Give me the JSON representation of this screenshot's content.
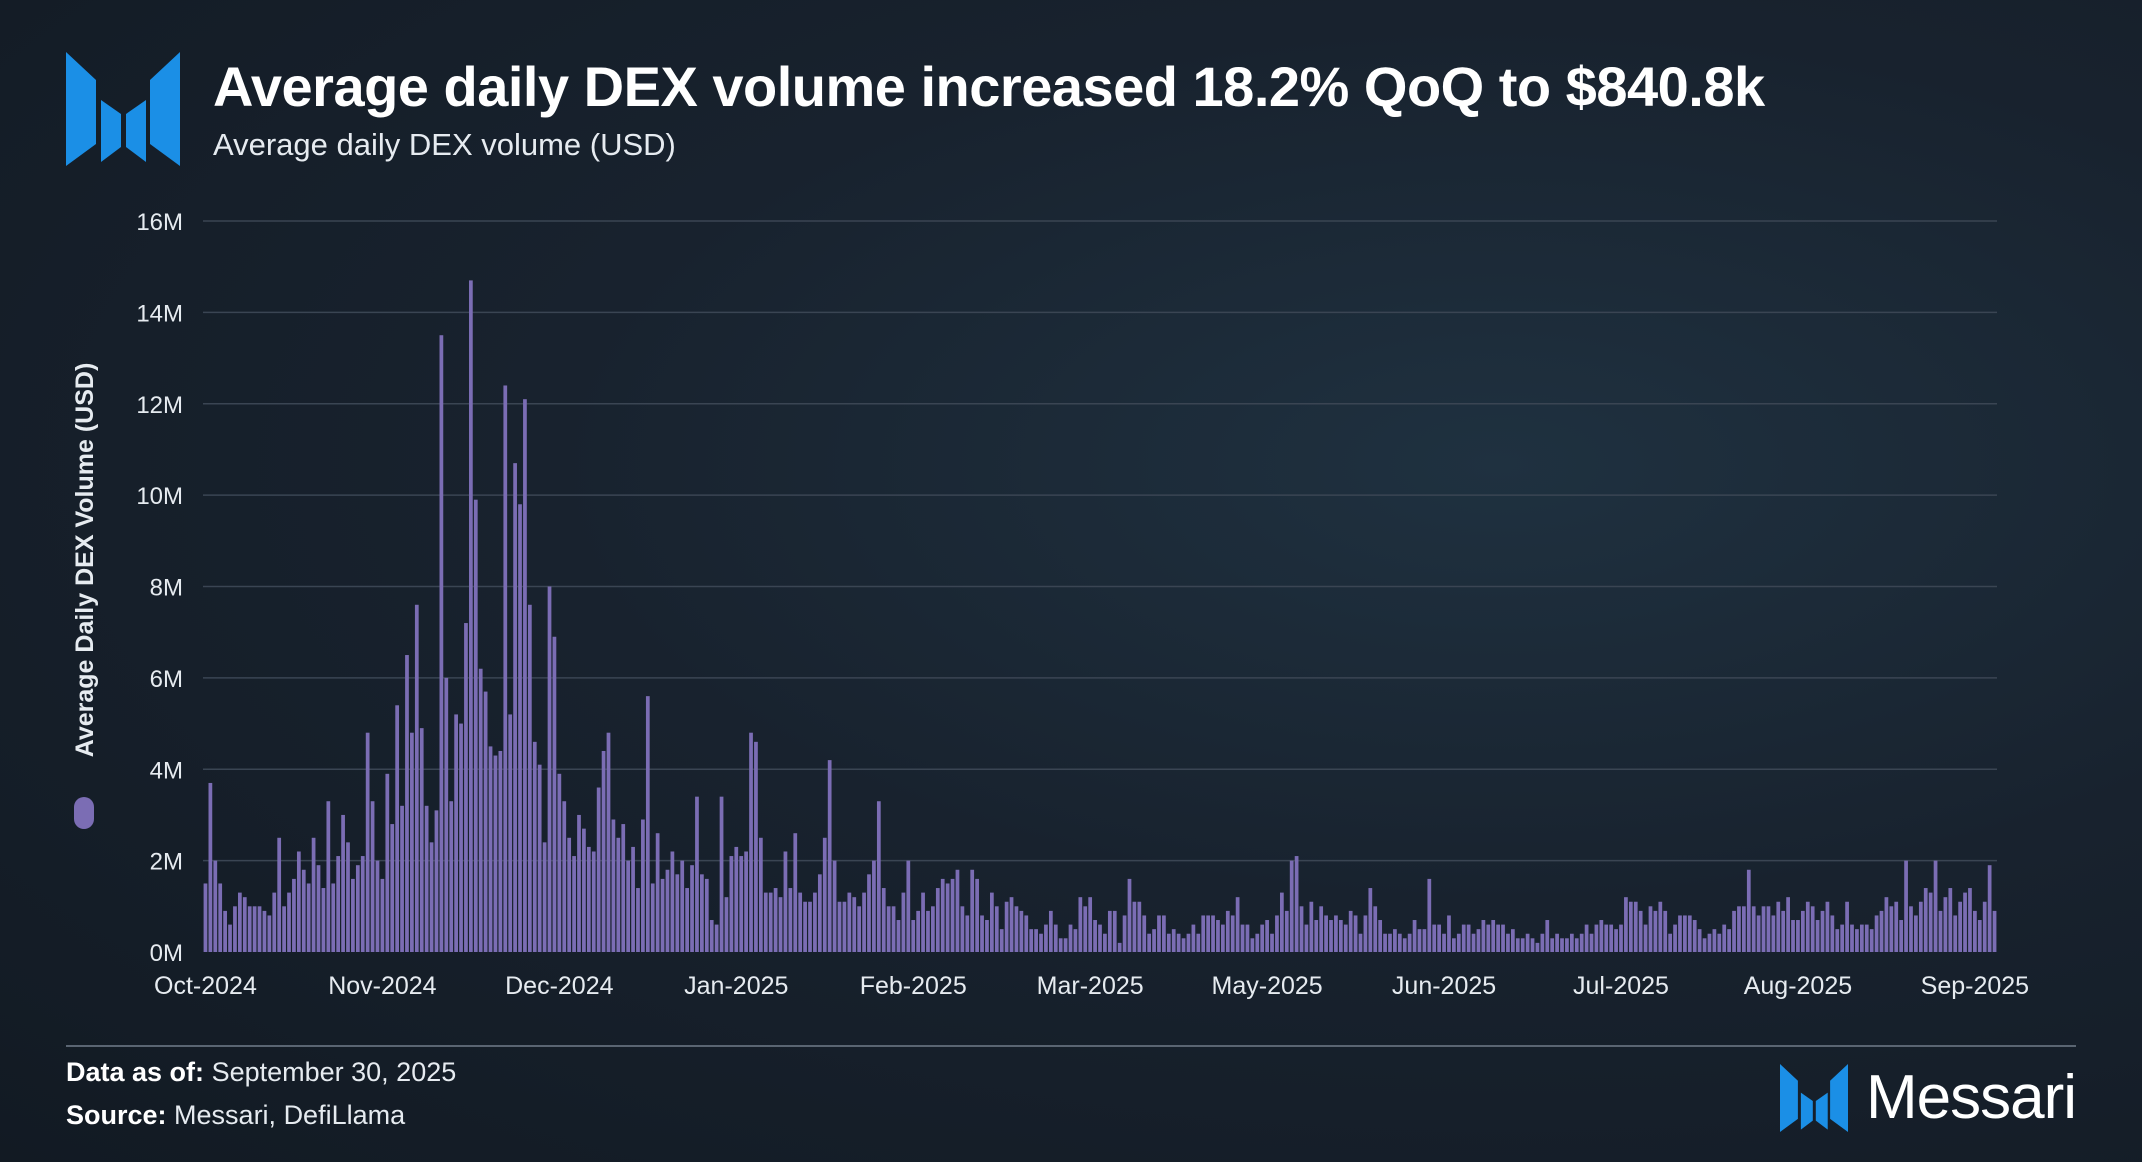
{
  "header": {
    "title": "Average daily DEX volume increased 18.2% QoQ to $840.8k",
    "subtitle": "Average daily DEX volume (USD)"
  },
  "footer": {
    "data_as_of_label": "Data as of:",
    "data_as_of_value": "September 30, 2025",
    "source_label": "Source:",
    "source_value": "Messari, DefiLlama",
    "brand_name": "Messari"
  },
  "colors": {
    "bar": "#7b6db4",
    "grid": "#3a4553",
    "axis_text": "#e6ebf0",
    "logo": "#1b8fe6"
  },
  "chart_data": {
    "type": "bar",
    "title": "Average daily DEX volume (USD)",
    "ylabel": "Average Daily DEX  Volume (USD)",
    "xlabel": "",
    "ylim": [
      0,
      16000000
    ],
    "yticks": [
      {
        "value": 0,
        "label": "0M"
      },
      {
        "value": 2000000,
        "label": "2M"
      },
      {
        "value": 4000000,
        "label": "4M"
      },
      {
        "value": 6000000,
        "label": "6M"
      },
      {
        "value": 8000000,
        "label": "8M"
      },
      {
        "value": 10000000,
        "label": "10M"
      },
      {
        "value": 12000000,
        "label": "12M"
      },
      {
        "value": 14000000,
        "label": "14M"
      },
      {
        "value": 16000000,
        "label": "16M"
      }
    ],
    "xticks": [
      {
        "index": 0,
        "label": "Oct-2024"
      },
      {
        "index": 36,
        "label": "Nov-2024"
      },
      {
        "index": 72,
        "label": "Dec-2024"
      },
      {
        "index": 108,
        "label": "Jan-2025"
      },
      {
        "index": 144,
        "label": "Feb-2025"
      },
      {
        "index": 180,
        "label": "Mar-2025"
      },
      {
        "index": 216,
        "label": "May-2025"
      },
      {
        "index": 252,
        "label": "Jun-2025"
      },
      {
        "index": 288,
        "label": "Jul-2025"
      },
      {
        "index": 324,
        "label": "Aug-2025"
      },
      {
        "index": 360,
        "label": "Sep-2025"
      }
    ],
    "series": [
      {
        "name": "Average Daily DEX  Volume (USD)",
        "unit": "M USD",
        "values": [
          1.5,
          3.7,
          2.0,
          1.5,
          0.9,
          0.6,
          1.0,
          1.3,
          1.2,
          1.0,
          1.0,
          1.0,
          0.9,
          0.8,
          1.3,
          2.5,
          1.0,
          1.3,
          1.6,
          2.2,
          1.8,
          1.5,
          2.5,
          1.9,
          1.4,
          3.3,
          1.5,
          2.1,
          3.0,
          2.4,
          1.6,
          1.9,
          2.1,
          4.8,
          3.3,
          2.0,
          1.6,
          3.9,
          2.8,
          5.4,
          3.2,
          6.5,
          4.8,
          7.6,
          4.9,
          3.2,
          2.4,
          3.1,
          13.5,
          6.0,
          3.3,
          5.2,
          5.0,
          7.2,
          14.7,
          9.9,
          6.2,
          5.7,
          4.5,
          4.3,
          4.4,
          12.4,
          5.2,
          10.7,
          9.8,
          12.1,
          7.6,
          4.6,
          4.1,
          2.4,
          8.0,
          6.9,
          3.9,
          3.3,
          2.5,
          2.1,
          3.0,
          2.7,
          2.3,
          2.2,
          3.6,
          4.4,
          4.8,
          2.9,
          2.5,
          2.8,
          2.0,
          2.3,
          1.4,
          2.9,
          5.6,
          1.5,
          2.6,
          1.6,
          1.8,
          2.2,
          1.7,
          2.0,
          1.4,
          1.9,
          3.4,
          1.7,
          1.6,
          0.7,
          0.6,
          3.4,
          1.2,
          2.1,
          2.3,
          2.1,
          2.2,
          4.8,
          4.6,
          2.5,
          1.3,
          1.3,
          1.4,
          1.2,
          2.2,
          1.4,
          2.6,
          1.3,
          1.1,
          1.1,
          1.3,
          1.7,
          2.5,
          4.2,
          2.0,
          1.1,
          1.1,
          1.3,
          1.2,
          1.0,
          1.3,
          1.7,
          2.0,
          3.3,
          1.4,
          1.0,
          1.0,
          0.7,
          1.3,
          2.0,
          0.7,
          0.9,
          1.3,
          0.9,
          1.0,
          1.4,
          1.6,
          1.5,
          1.6,
          1.8,
          1.0,
          0.8,
          1.8,
          1.6,
          0.8,
          0.7,
          1.3,
          1.0,
          0.5,
          1.1,
          1.2,
          1.0,
          0.9,
          0.8,
          0.5,
          0.5,
          0.4,
          0.6,
          0.9,
          0.6,
          0.3,
          0.3,
          0.6,
          0.5,
          1.2,
          1.0,
          1.2,
          0.7,
          0.6,
          0.4,
          0.9,
          0.9,
          0.2,
          0.8,
          1.6,
          1.1,
          1.1,
          0.8,
          0.4,
          0.5,
          0.8,
          0.8,
          0.4,
          0.5,
          0.4,
          0.3,
          0.4,
          0.6,
          0.4,
          0.8,
          0.8,
          0.8,
          0.7,
          0.6,
          0.9,
          0.8,
          1.2,
          0.6,
          0.6,
          0.3,
          0.4,
          0.6,
          0.7,
          0.4,
          0.8,
          1.3,
          0.9,
          2.0,
          2.1,
          1.0,
          0.6,
          1.1,
          0.7,
          1.0,
          0.8,
          0.7,
          0.8,
          0.7,
          0.6,
          0.9,
          0.8,
          0.4,
          0.8,
          1.4,
          1.0,
          0.7,
          0.4,
          0.4,
          0.5,
          0.4,
          0.3,
          0.4,
          0.7,
          0.5,
          0.5,
          1.6,
          0.6,
          0.6,
          0.4,
          0.8,
          0.3,
          0.4,
          0.6,
          0.6,
          0.4,
          0.5,
          0.7,
          0.6,
          0.7,
          0.6,
          0.6,
          0.4,
          0.5,
          0.3,
          0.3,
          0.4,
          0.3,
          0.2,
          0.4,
          0.7,
          0.3,
          0.4,
          0.3,
          0.3,
          0.4,
          0.3,
          0.4,
          0.6,
          0.4,
          0.6,
          0.7,
          0.6,
          0.6,
          0.5,
          0.6,
          1.2,
          1.1,
          1.1,
          0.9,
          0.6,
          1.0,
          0.9,
          1.1,
          0.9,
          0.4,
          0.6,
          0.8,
          0.8,
          0.8,
          0.7,
          0.5,
          0.3,
          0.4,
          0.5,
          0.4,
          0.6,
          0.5,
          0.9,
          1.0,
          1.0,
          1.8,
          1.0,
          0.8,
          1.0,
          1.0,
          0.8,
          1.1,
          0.9,
          1.2,
          0.7,
          0.7,
          0.9,
          1.1,
          1.0,
          0.7,
          0.9,
          1.1,
          0.8,
          0.5,
          0.6,
          1.1,
          0.6,
          0.5,
          0.6,
          0.6,
          0.5,
          0.8,
          0.9,
          1.2,
          1.0,
          1.1,
          0.7,
          2.0,
          1.0,
          0.8,
          1.1,
          1.4,
          1.3,
          2.0,
          0.9,
          1.2,
          1.4,
          0.8,
          1.1,
          1.3,
          1.4,
          0.9,
          0.7,
          1.1,
          1.9,
          0.9
        ]
      }
    ]
  }
}
